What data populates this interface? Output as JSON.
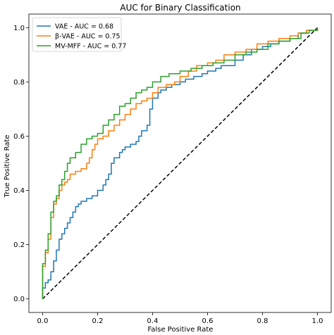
{
  "chart_data": {
    "type": "line",
    "title": "AUC for Binary Classification",
    "xlabel": "False Positive Rate",
    "ylabel": "True Positive Rate",
    "xlim": [
      -0.05,
      1.05
    ],
    "ylim": [
      -0.05,
      1.05
    ],
    "xticks": [
      "0.0",
      "0.2",
      "0.4",
      "0.6",
      "0.8",
      "1.0"
    ],
    "yticks": [
      "0.0",
      "0.2",
      "0.4",
      "0.6",
      "0.8",
      "1.0"
    ],
    "legend_position": "top-left",
    "baseline": {
      "x": [
        0,
        1
      ],
      "y": [
        0,
        1
      ],
      "style": "dashed",
      "color": "#000000"
    },
    "series": [
      {
        "name": "VAE - AUC = 0.68",
        "color": "#1f77b4",
        "x": [
          0,
          0,
          0.01,
          0.01,
          0.02,
          0.02,
          0.03,
          0.03,
          0.04,
          0.04,
          0.05,
          0.05,
          0.06,
          0.06,
          0.07,
          0.07,
          0.08,
          0.08,
          0.09,
          0.09,
          0.1,
          0.1,
          0.11,
          0.11,
          0.12,
          0.12,
          0.13,
          0.13,
          0.14,
          0.14,
          0.16,
          0.16,
          0.18,
          0.18,
          0.2,
          0.2,
          0.22,
          0.22,
          0.23,
          0.23,
          0.24,
          0.24,
          0.25,
          0.25,
          0.26,
          0.26,
          0.28,
          0.28,
          0.29,
          0.29,
          0.3,
          0.3,
          0.32,
          0.32,
          0.34,
          0.34,
          0.35,
          0.35,
          0.36,
          0.36,
          0.38,
          0.38,
          0.39,
          0.39,
          0.4,
          0.4,
          0.42,
          0.42,
          0.43,
          0.43,
          0.45,
          0.45,
          0.47,
          0.47,
          0.5,
          0.5,
          0.52,
          0.52,
          0.55,
          0.55,
          0.58,
          0.58,
          0.6,
          0.6,
          0.63,
          0.63,
          0.65,
          0.65,
          0.7,
          0.7,
          0.73,
          0.73,
          0.76,
          0.76,
          0.8,
          0.8,
          0.83,
          0.83,
          0.86,
          0.86,
          0.9,
          0.9,
          0.93,
          0.93,
          0.96,
          0.96,
          1.0,
          1.0
        ],
        "y": [
          0,
          0.04,
          0.04,
          0.06,
          0.06,
          0.07,
          0.07,
          0.1,
          0.1,
          0.14,
          0.14,
          0.18,
          0.18,
          0.22,
          0.22,
          0.24,
          0.24,
          0.26,
          0.26,
          0.28,
          0.28,
          0.3,
          0.3,
          0.32,
          0.32,
          0.34,
          0.34,
          0.35,
          0.35,
          0.36,
          0.36,
          0.37,
          0.37,
          0.38,
          0.38,
          0.4,
          0.4,
          0.42,
          0.42,
          0.44,
          0.44,
          0.46,
          0.46,
          0.5,
          0.5,
          0.52,
          0.52,
          0.54,
          0.54,
          0.55,
          0.55,
          0.56,
          0.56,
          0.57,
          0.57,
          0.58,
          0.58,
          0.6,
          0.6,
          0.62,
          0.62,
          0.64,
          0.64,
          0.7,
          0.7,
          0.74,
          0.74,
          0.76,
          0.76,
          0.77,
          0.77,
          0.78,
          0.78,
          0.79,
          0.79,
          0.8,
          0.8,
          0.81,
          0.81,
          0.82,
          0.82,
          0.83,
          0.83,
          0.84,
          0.84,
          0.85,
          0.85,
          0.86,
          0.86,
          0.88,
          0.88,
          0.9,
          0.9,
          0.92,
          0.92,
          0.93,
          0.93,
          0.94,
          0.94,
          0.95,
          0.95,
          0.96,
          0.96,
          0.98,
          0.98,
          0.99,
          0.99,
          1.0
        ]
      },
      {
        "name": "β-VAE - AUC = 0.75",
        "color": "#ff7f0e",
        "x": [
          0,
          0,
          0.01,
          0.01,
          0.02,
          0.02,
          0.03,
          0.03,
          0.04,
          0.04,
          0.05,
          0.05,
          0.06,
          0.06,
          0.07,
          0.07,
          0.08,
          0.08,
          0.09,
          0.09,
          0.1,
          0.1,
          0.12,
          0.12,
          0.14,
          0.14,
          0.16,
          0.16,
          0.17,
          0.17,
          0.18,
          0.18,
          0.19,
          0.19,
          0.2,
          0.2,
          0.22,
          0.22,
          0.24,
          0.24,
          0.26,
          0.26,
          0.28,
          0.28,
          0.3,
          0.3,
          0.32,
          0.32,
          0.34,
          0.34,
          0.36,
          0.36,
          0.38,
          0.38,
          0.4,
          0.4,
          0.42,
          0.42,
          0.45,
          0.45,
          0.48,
          0.48,
          0.5,
          0.5,
          0.53,
          0.53,
          0.56,
          0.56,
          0.6,
          0.6,
          0.63,
          0.63,
          0.66,
          0.66,
          0.7,
          0.7,
          0.74,
          0.74,
          0.78,
          0.78,
          0.82,
          0.82,
          0.86,
          0.86,
          0.9,
          0.9,
          0.93,
          0.93,
          0.96,
          0.96,
          1.0,
          1.0
        ],
        "y": [
          0,
          0.12,
          0.12,
          0.17,
          0.17,
          0.22,
          0.22,
          0.3,
          0.3,
          0.35,
          0.35,
          0.37,
          0.37,
          0.4,
          0.4,
          0.42,
          0.42,
          0.43,
          0.43,
          0.44,
          0.44,
          0.46,
          0.46,
          0.47,
          0.47,
          0.48,
          0.48,
          0.5,
          0.5,
          0.52,
          0.52,
          0.55,
          0.55,
          0.57,
          0.57,
          0.59,
          0.59,
          0.6,
          0.6,
          0.62,
          0.62,
          0.64,
          0.64,
          0.66,
          0.66,
          0.68,
          0.68,
          0.7,
          0.7,
          0.72,
          0.72,
          0.73,
          0.73,
          0.74,
          0.74,
          0.76,
          0.76,
          0.78,
          0.78,
          0.79,
          0.79,
          0.8,
          0.8,
          0.82,
          0.82,
          0.84,
          0.84,
          0.86,
          0.86,
          0.87,
          0.87,
          0.88,
          0.88,
          0.9,
          0.9,
          0.91,
          0.91,
          0.92,
          0.92,
          0.94,
          0.94,
          0.95,
          0.95,
          0.96,
          0.96,
          0.97,
          0.97,
          0.98,
          0.98,
          0.99,
          0.99,
          1.0
        ]
      },
      {
        "name": "MV-MFF - AUC = 0.77",
        "color": "#2ca02c",
        "x": [
          0,
          0,
          0.01,
          0.01,
          0.02,
          0.02,
          0.03,
          0.03,
          0.04,
          0.04,
          0.05,
          0.05,
          0.06,
          0.06,
          0.07,
          0.07,
          0.08,
          0.08,
          0.09,
          0.09,
          0.1,
          0.1,
          0.12,
          0.12,
          0.14,
          0.14,
          0.16,
          0.16,
          0.18,
          0.18,
          0.2,
          0.2,
          0.22,
          0.22,
          0.24,
          0.24,
          0.26,
          0.26,
          0.28,
          0.28,
          0.3,
          0.3,
          0.32,
          0.32,
          0.34,
          0.34,
          0.36,
          0.36,
          0.38,
          0.38,
          0.4,
          0.4,
          0.43,
          0.43,
          0.46,
          0.46,
          0.5,
          0.5,
          0.54,
          0.54,
          0.58,
          0.58,
          0.62,
          0.62,
          0.66,
          0.66,
          0.7,
          0.7,
          0.74,
          0.74,
          0.78,
          0.78,
          0.82,
          0.82,
          0.86,
          0.86,
          0.9,
          0.9,
          0.94,
          0.94,
          0.97,
          0.97,
          1.0,
          1.0
        ],
        "y": [
          0,
          0.13,
          0.13,
          0.18,
          0.18,
          0.24,
          0.24,
          0.32,
          0.32,
          0.36,
          0.36,
          0.38,
          0.38,
          0.42,
          0.42,
          0.44,
          0.44,
          0.47,
          0.47,
          0.5,
          0.5,
          0.52,
          0.52,
          0.54,
          0.54,
          0.57,
          0.57,
          0.59,
          0.59,
          0.6,
          0.6,
          0.61,
          0.61,
          0.64,
          0.64,
          0.66,
          0.66,
          0.68,
          0.68,
          0.71,
          0.71,
          0.72,
          0.72,
          0.74,
          0.74,
          0.76,
          0.76,
          0.77,
          0.77,
          0.78,
          0.78,
          0.8,
          0.8,
          0.82,
          0.82,
          0.83,
          0.83,
          0.84,
          0.84,
          0.85,
          0.85,
          0.86,
          0.86,
          0.87,
          0.87,
          0.88,
          0.88,
          0.9,
          0.9,
          0.91,
          0.91,
          0.92,
          0.92,
          0.94,
          0.94,
          0.95,
          0.95,
          0.96,
          0.96,
          0.98,
          0.98,
          0.99,
          0.99,
          1.0
        ]
      }
    ]
  }
}
